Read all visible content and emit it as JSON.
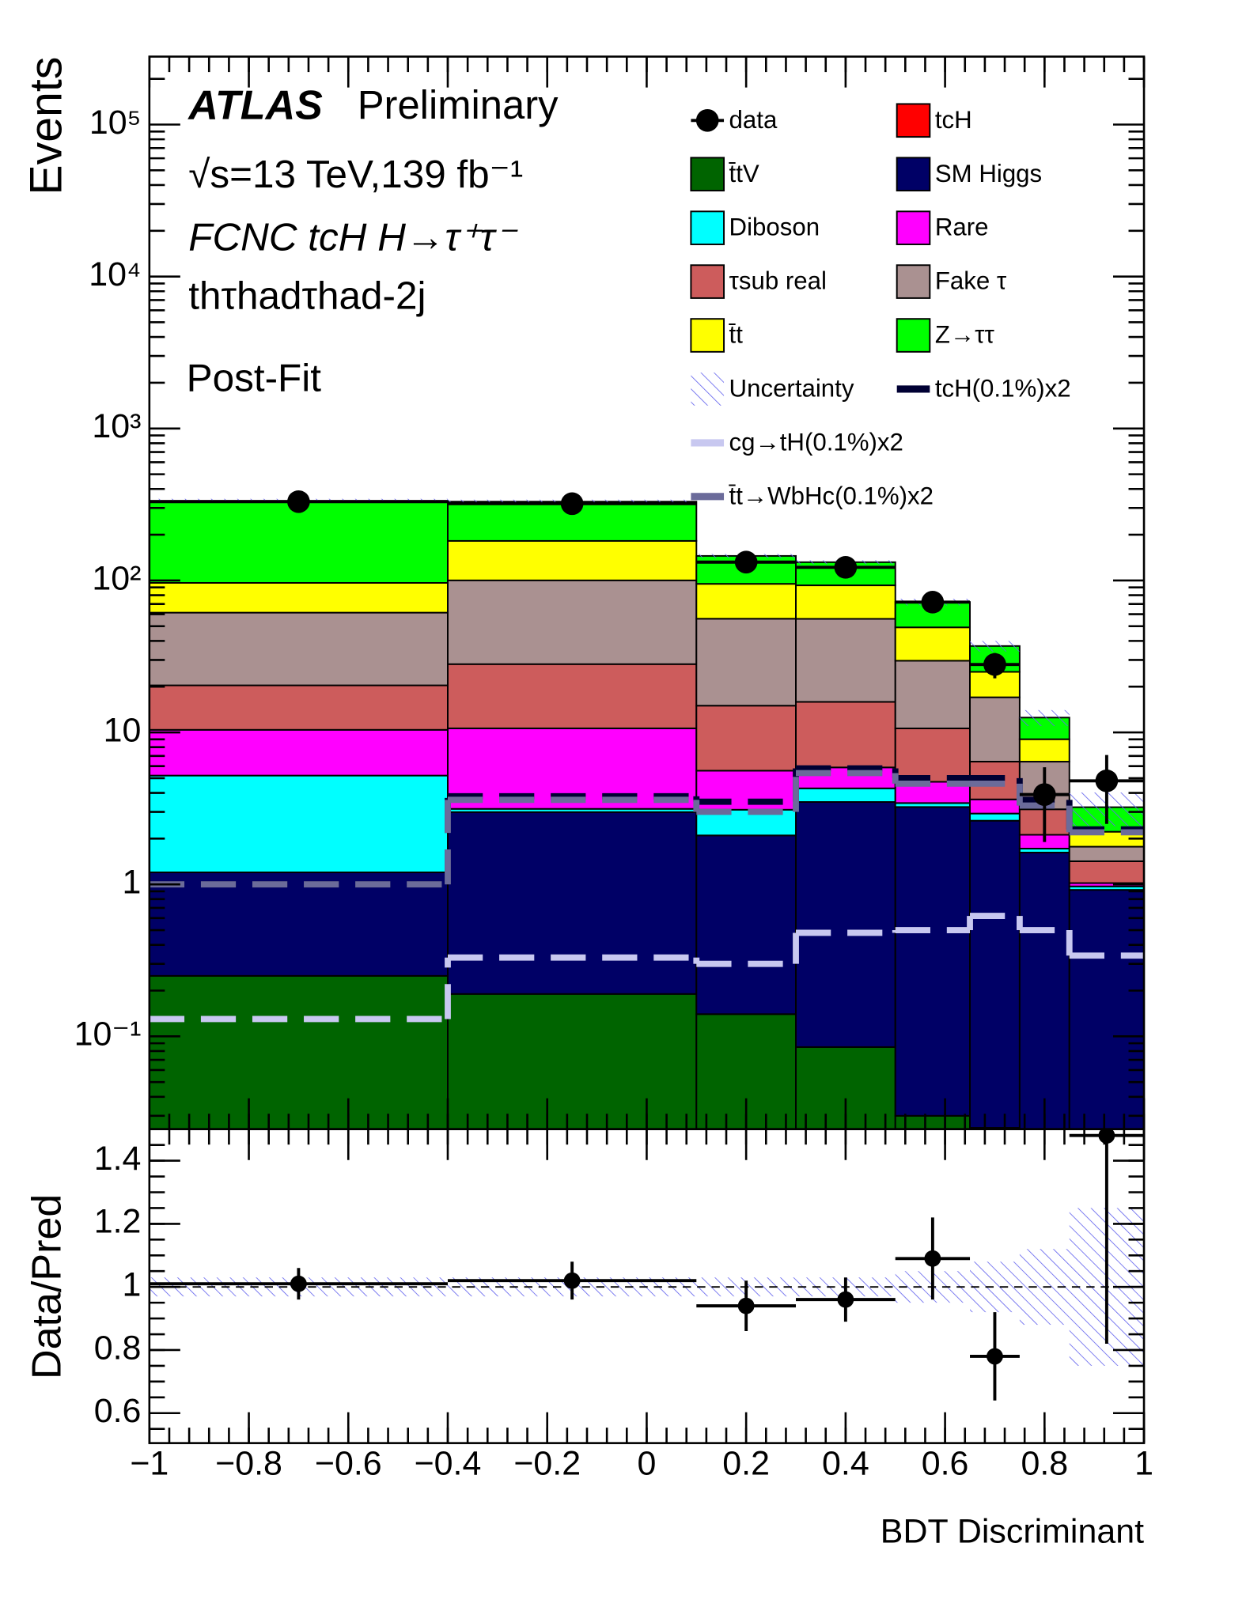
{
  "chart_data": [
    {
      "type": "histogram",
      "ylabel": "Events",
      "log_y": true,
      "bins": [
        -1,
        -0.4,
        0.1,
        0.3,
        0.5,
        0.65,
        0.75,
        0.85,
        1
      ],
      "ylim": [
        0.0245,
        280000
      ],
      "yticks": [
        {
          "value": 0.1,
          "label": "10⁻¹"
        },
        1,
        10,
        {
          "value": 100,
          "label": "10²"
        },
        {
          "value": 1000,
          "label": "10³"
        },
        {
          "value": 10000,
          "label": "10⁴"
        },
        {
          "value": 100000,
          "label": "10⁵"
        }
      ],
      "annotations": [
        "ATLAS",
        "Preliminary",
        "√s=13 TeV,139 fb⁻¹",
        "FCNC tcH H→τ⁺τ⁻",
        "thτhadτhad-2j",
        "Post-Fit"
      ],
      "series": [
        {
          "name": "t̄tV",
          "color": "#006400",
          "values": [
            0.25,
            0.19,
            0.14,
            0.085,
            0.03,
            0.025,
            0.02,
            0.02
          ]
        },
        {
          "name": "SM Higgs",
          "color": "#000066",
          "values": [
            0.95,
            2.8,
            1.96,
            3.4,
            3.2,
            2.6,
            1.6,
            0.9
          ]
        },
        {
          "name": "Diboson",
          "color": "#00ffff",
          "values": [
            4.0,
            0.15,
            1.0,
            0.8,
            0.2,
            0.3,
            0.1,
            0.05
          ]
        },
        {
          "name": "Rare",
          "color": "#ff00ff",
          "values": [
            5.2,
            7.5,
            2.5,
            1.6,
            1.3,
            0.7,
            0.4,
            0.05
          ]
        },
        {
          "name": "τsub real",
          "color": "#cd5c5c",
          "values": [
            10,
            17.5,
            9.4,
            10,
            5.9,
            2.8,
            1.0,
            0.4
          ]
        },
        {
          "name": "Fake τ",
          "color": "#aa9191",
          "values": [
            41,
            72,
            41,
            40,
            19,
            10.6,
            3.3,
            0.35
          ]
        },
        {
          "name": "t̄t",
          "color": "#ffff00",
          "values": [
            35,
            82,
            39,
            37,
            19.5,
            8,
            2.6,
            0.45
          ]
        },
        {
          "name": "Z→ττ",
          "color": "#00ff00",
          "values": [
            238,
            148,
            50,
            39,
            23,
            12,
            3.5,
            1.0
          ]
        },
        {
          "name": "tcH",
          "color": "#ff0000",
          "values": [
            0,
            0,
            0,
            0,
            0,
            0,
            0,
            0
          ]
        }
      ],
      "data": {
        "name": "data",
        "x": [
          -0.7,
          -0.15,
          0.2,
          0.4,
          0.575,
          0.7,
          0.8,
          0.925
        ],
        "values": [
          330,
          320,
          132,
          122,
          72,
          28,
          3.9,
          4.8
        ],
        "errors": [
          18,
          18,
          11.5,
          11,
          8.5,
          5.3,
          2,
          2.3
        ]
      },
      "uncertainty": {
        "name": "Uncertainty",
        "color": "#6666ee"
      },
      "lines": [
        {
          "name": "tcH(0.1%)x2",
          "color": "#000033",
          "values": [
            1.0,
            3.8,
            3.5,
            5.8,
            5.0,
            5.0,
            3.6,
            2.3
          ]
        },
        {
          "name": "cg→tH(0.1%)x2",
          "color": "#c8c8f0",
          "values": [
            0.13,
            0.33,
            0.3,
            0.48,
            0.5,
            0.62,
            0.5,
            0.34
          ]
        },
        {
          "name": "t̄t→WbHc(0.1%)x2",
          "color": "#6b6b9a",
          "values": [
            1.0,
            3.6,
            3.0,
            5.4,
            4.6,
            4.6,
            3.3,
            2.2
          ]
        }
      ]
    },
    {
      "type": "scatter",
      "ylabel": "Data/Pred",
      "xlabel": "BDT Discriminant",
      "xlim": [
        -1,
        1
      ],
      "xticks": [
        {
          "value": -1,
          "label": "−1"
        },
        {
          "value": -0.8,
          "label": "−0.8"
        },
        {
          "value": -0.6,
          "label": "−0.6"
        },
        {
          "value": -0.4,
          "label": "−0.4"
        },
        {
          "value": -0.2,
          "label": "−0.2"
        },
        0,
        0.2,
        0.4,
        0.6,
        0.8,
        1
      ],
      "ylim": [
        0.505,
        1.5
      ],
      "yticks": [
        0.6,
        0.8,
        1,
        1.2,
        1.4
      ],
      "values": [
        1.01,
        1.02,
        0.94,
        0.96,
        1.09,
        0.78,
        null,
        1.48
      ],
      "errors": [
        0.05,
        0.06,
        0.08,
        0.07,
        0.13,
        0.14,
        null,
        0.66
      ],
      "band": [
        0.03,
        0.03,
        0.03,
        0.03,
        0.05,
        0.08,
        0.12,
        0.25
      ],
      "reference": 1
    }
  ]
}
